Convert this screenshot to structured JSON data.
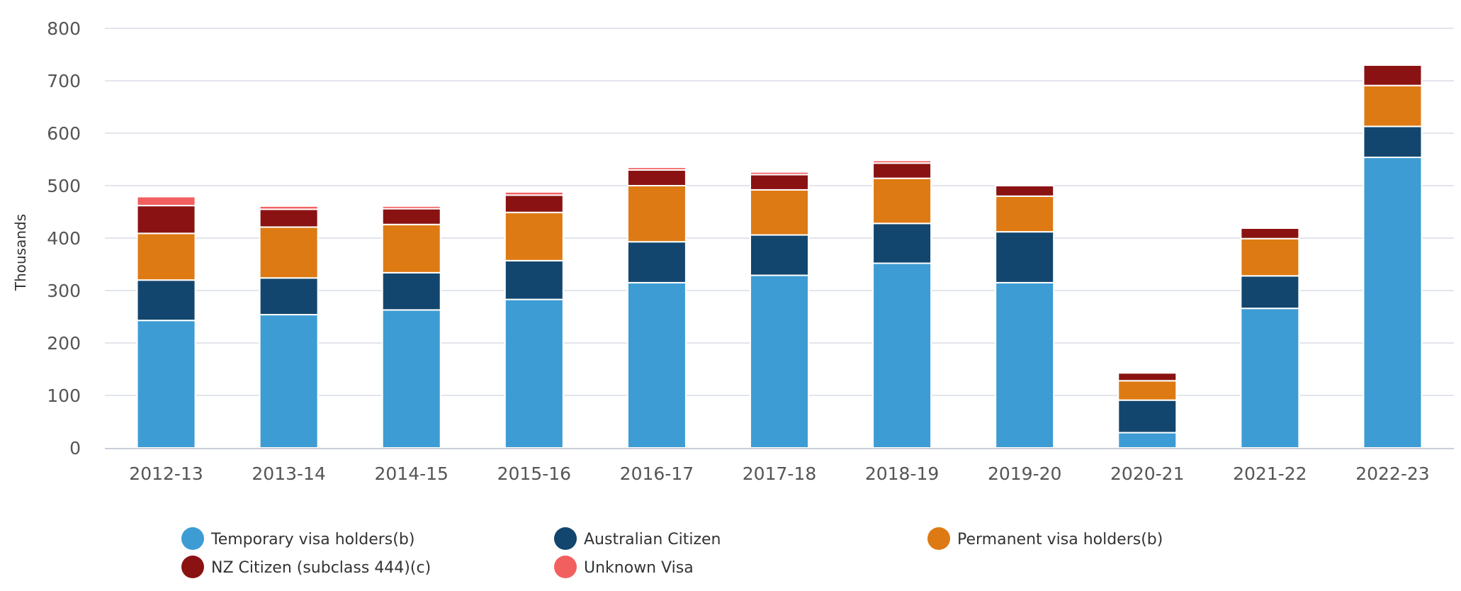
{
  "chart_data": {
    "type": "bar",
    "stacked": true,
    "ylabel": "Thousands",
    "ylim": [
      0,
      800
    ],
    "yticks": [
      0,
      100,
      200,
      300,
      400,
      500,
      600,
      700,
      800
    ],
    "grid": true,
    "legend_position": "bottom",
    "categories": [
      "2012-13",
      "2013-14",
      "2014-15",
      "2015-16",
      "2016-17",
      "2017-18",
      "2018-19",
      "2019-20",
      "2020-21",
      "2021-22",
      "2022-23"
    ],
    "series": [
      {
        "name": "Temporary visa holders(b)",
        "color": "#3d9cd3",
        "values": [
          243,
          254,
          263,
          283,
          315,
          329,
          352,
          315,
          29,
          266,
          554
        ]
      },
      {
        "name": "Australian Citizen",
        "color": "#13466e",
        "values": [
          77,
          70,
          71,
          74,
          78,
          77,
          76,
          97,
          62,
          62,
          59
        ]
      },
      {
        "name": "Permanent visa holders(b)",
        "color": "#de7a13",
        "values": [
          89,
          97,
          92,
          92,
          107,
          86,
          86,
          68,
          37,
          71,
          78
        ]
      },
      {
        "name": "NZ Citizen (subclass 444)(c)",
        "color": "#8b1212",
        "values": [
          53,
          34,
          30,
          33,
          30,
          29,
          29,
          20,
          15,
          20,
          39
        ]
      },
      {
        "name": "Unknown Visa",
        "color": "#f25f5f",
        "values": [
          17,
          6,
          5,
          6,
          5,
          5,
          5,
          1,
          1,
          1,
          1
        ]
      }
    ]
  }
}
